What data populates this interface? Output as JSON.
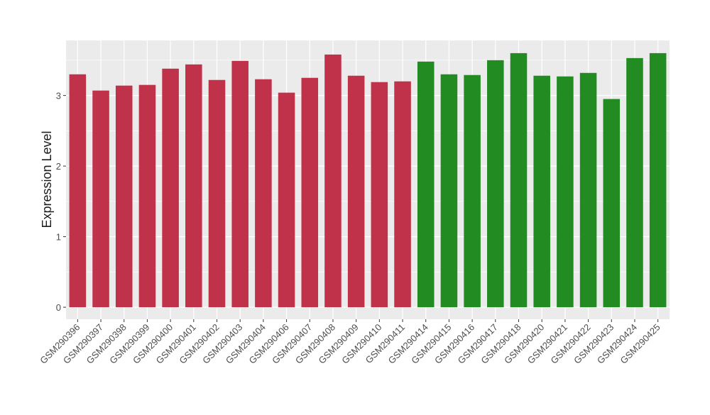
{
  "chart_data": {
    "type": "bar",
    "title": "",
    "xlabel": "",
    "ylabel": "Expression Level",
    "ylim": [
      -0.17,
      3.78
    ],
    "yticks": [
      0,
      1,
      2,
      3
    ],
    "grid": true,
    "legend": "none",
    "categories": [
      "GSM290396",
      "GSM290397",
      "GSM290398",
      "GSM290399",
      "GSM290400",
      "GSM290401",
      "GSM290402",
      "GSM290403",
      "GSM290404",
      "GSM290406",
      "GSM290407",
      "GSM290408",
      "GSM290409",
      "GSM290410",
      "GSM290411",
      "GSM290414",
      "GSM290415",
      "GSM290416",
      "GSM290417",
      "GSM290418",
      "GSM290420",
      "GSM290421",
      "GSM290422",
      "GSM290423",
      "GSM290424",
      "GSM290425"
    ],
    "values": [
      3.3,
      3.07,
      3.14,
      3.15,
      3.38,
      3.44,
      3.22,
      3.49,
      3.23,
      3.04,
      3.25,
      3.58,
      3.28,
      3.19,
      3.2,
      3.48,
      3.3,
      3.29,
      3.5,
      3.6,
      3.28,
      3.27,
      3.32,
      2.95,
      3.53,
      3.6
    ],
    "groups": [
      0,
      0,
      0,
      0,
      0,
      0,
      0,
      0,
      0,
      0,
      0,
      0,
      0,
      0,
      0,
      1,
      1,
      1,
      1,
      1,
      1,
      1,
      1,
      1,
      1,
      1
    ],
    "colors": {
      "group_0": "#c0314a",
      "group_1": "#228b22",
      "panel_bg": "#ebebeb",
      "grid": "#ffffff",
      "text": "#1a1a1a",
      "tick_label": "#4d4d4d"
    }
  }
}
